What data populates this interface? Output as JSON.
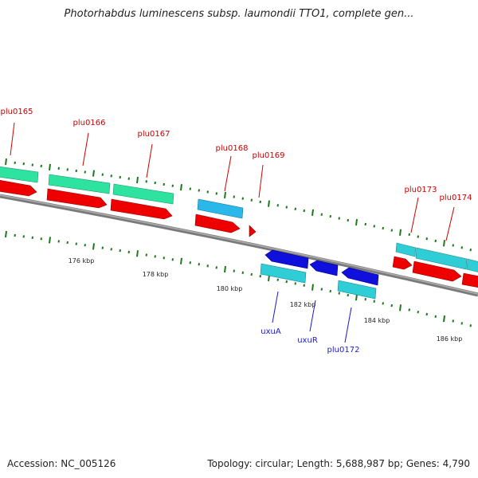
{
  "title": "Photorhabdus luminescens subsp. laumondii TTO1, complete gen...",
  "footer": {
    "accession": "Accession: NC_005126",
    "summary": "Topology: circular; Length: 5,688,987 bp; Genes: 4,790"
  },
  "scale_labels": [
    "176 kbp",
    "178 kbp",
    "180 kbp",
    "182 kbp",
    "184 kbp",
    "186 kbp"
  ],
  "gene_labels_forward": [
    "plu0165",
    "plu0166",
    "plu0167",
    "plu0168",
    "plu0169",
    "plu0173",
    "plu0174"
  ],
  "gene_labels_reverse": [
    "uxuA",
    "uxuR",
    "plu0172"
  ],
  "colors": {
    "forward_label": "#cc0000",
    "reverse_label": "#1a1acc",
    "cds_red": "#ee0000",
    "cds_blue": "#1010dd",
    "feature_green": "#2ee3a0",
    "feature_cyan": "#2fcdd6",
    "feature_lightblue": "#2ab8ea",
    "tick_green": "#1a7a1a",
    "backbone": "#888888"
  }
}
